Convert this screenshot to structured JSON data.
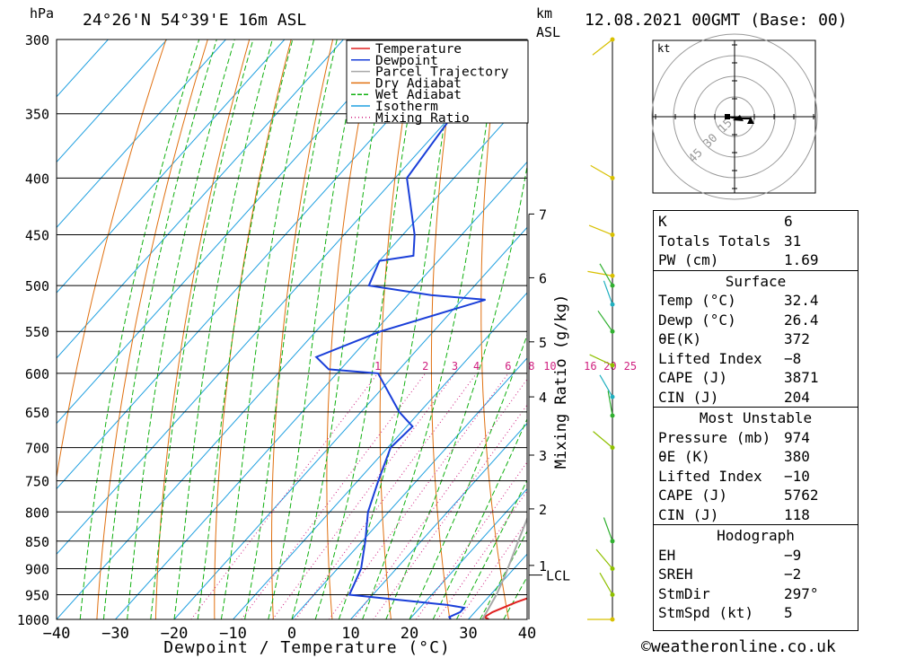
{
  "header": {
    "pressure_unit": "hPa",
    "location": "24°26'N  54°39'E  16m  ASL",
    "km_label": "km",
    "asl_label": "ASL",
    "datetime": "12.08.2021  00GMT  (Base: 00)"
  },
  "chart_data": {
    "type": "line",
    "subtype": "skew-t log-p sounding",
    "xlabel": "Dewpoint / Temperature (°C)",
    "ylabel": "hPa",
    "mixing_ratio_axis_label": "Mixing Ratio (g/kg)",
    "xlim": [
      -40,
      40
    ],
    "ylim": [
      1000,
      300
    ],
    "x_ticks": [
      "−40",
      "−30",
      "−20",
      "−10",
      "0",
      "10",
      "20",
      "30",
      "40"
    ],
    "pressure_levels": [
      300,
      350,
      400,
      450,
      500,
      550,
      600,
      650,
      700,
      750,
      800,
      850,
      900,
      950,
      1000
    ],
    "km_ticks": [
      {
        "label": "7",
        "p": 431
      },
      {
        "label": "6",
        "p": 492
      },
      {
        "label": "5",
        "p": 562
      },
      {
        "label": "4",
        "p": 630
      },
      {
        "label": "3",
        "p": 711
      },
      {
        "label": "2",
        "p": 795
      },
      {
        "label": "1",
        "p": 894
      }
    ],
    "lcl_label": "LCL",
    "lcl_pressure": 912,
    "mixing_ratio_labels": [
      "1",
      "2",
      "3",
      "4",
      "6",
      "8",
      "10",
      "16",
      "20",
      "25"
    ],
    "mixing_ratio_values": [
      1,
      2,
      3,
      4,
      6,
      8,
      10,
      16,
      20,
      25
    ],
    "legend": {
      "placement": "top-right",
      "items": [
        {
          "name": "Temperature",
          "color": "#e02020",
          "style": "solid"
        },
        {
          "name": "Dewpoint",
          "color": "#1a3fd9",
          "style": "solid"
        },
        {
          "name": "Parcel Trajectory",
          "color": "#a8a8a8",
          "style": "solid"
        },
        {
          "name": "Dry Adiabat",
          "color": "#e07010",
          "style": "solid"
        },
        {
          "name": "Wet Adiabat",
          "color": "#10b010",
          "style": "dashed"
        },
        {
          "name": "Isotherm",
          "color": "#20a0e0",
          "style": "solid"
        },
        {
          "name": "Mixing Ratio",
          "color": "#d02080",
          "style": "dotted"
        }
      ]
    },
    "series": [
      {
        "name": "Temperature",
        "color": "#e02020",
        "points": [
          [
            1000,
            33.5
          ],
          [
            995,
            32.4
          ],
          [
            985,
            33
          ],
          [
            965,
            35.5
          ],
          [
            950,
            38
          ],
          [
            900,
            34
          ],
          [
            850,
            30
          ],
          [
            800,
            26.5
          ],
          [
            750,
            23.5
          ],
          [
            700,
            20.5
          ],
          [
            650,
            18
          ],
          [
            620,
            16.5
          ],
          [
            600,
            15
          ],
          [
            585,
            16.5
          ],
          [
            550,
            12
          ],
          [
            520,
            8.5
          ],
          [
            505,
            8
          ],
          [
            500,
            7.5
          ],
          [
            470,
            5.5
          ],
          [
            420,
            0
          ],
          [
            400,
            -4
          ],
          [
            370,
            -9
          ]
        ]
      },
      {
        "name": "Dewpoint",
        "color": "#1a3fd9",
        "points": [
          [
            1000,
            27
          ],
          [
            995,
            26.4
          ],
          [
            985,
            27.5
          ],
          [
            976,
            27.5
          ],
          [
            970,
            24
          ],
          [
            950,
            6
          ],
          [
            900,
            4
          ],
          [
            850,
            0.5
          ],
          [
            800,
            -3.5
          ],
          [
            750,
            -6.5
          ],
          [
            700,
            -9.5
          ],
          [
            670,
            -9
          ],
          [
            650,
            -13.5
          ],
          [
            600,
            -23
          ],
          [
            595,
            -32
          ],
          [
            580,
            -36
          ],
          [
            550,
            -29
          ],
          [
            515,
            -16
          ],
          [
            510,
            -26
          ],
          [
            500,
            -38
          ],
          [
            475,
            -40
          ],
          [
            470,
            -35
          ],
          [
            450,
            -38
          ],
          [
            400,
            -48
          ],
          [
            300,
            -52
          ]
        ]
      },
      {
        "name": "Parcel Trajectory",
        "color": "#a8a8a8",
        "points": [
          [
            1000,
            32.4
          ],
          [
            950,
            31
          ],
          [
            912,
            29.5
          ],
          [
            850,
            26.5
          ],
          [
            800,
            24
          ],
          [
            750,
            21.5
          ],
          [
            700,
            18.5
          ],
          [
            650,
            15.5
          ],
          [
            600,
            12
          ],
          [
            550,
            8
          ],
          [
            500,
            3.5
          ],
          [
            450,
            -2
          ],
          [
            400,
            -8
          ],
          [
            370,
            -12
          ]
        ]
      }
    ]
  },
  "hodograph": {
    "unit": "kt",
    "ring_labels": [
      "15",
      "30",
      "45"
    ]
  },
  "indices": {
    "rows": [
      {
        "label": "K",
        "value": "6"
      },
      {
        "label": "Totals Totals",
        "value": "31"
      },
      {
        "label": "PW (cm)",
        "value": "1.69"
      }
    ]
  },
  "surface": {
    "title": "Surface",
    "rows": [
      {
        "label": "Temp (°C)",
        "value": "32.4"
      },
      {
        "label": "Dewp (°C)",
        "value": "26.4"
      },
      {
        "label": "θE(K)",
        "value": "372"
      },
      {
        "label": "Lifted Index",
        "value": "−8"
      },
      {
        "label": "CAPE (J)",
        "value": "3871"
      },
      {
        "label": "CIN (J)",
        "value": "204"
      }
    ]
  },
  "most_unstable": {
    "title": "Most Unstable",
    "rows": [
      {
        "label": "Pressure (mb)",
        "value": "974"
      },
      {
        "label": "θE (K)",
        "value": "380"
      },
      {
        "label": "Lifted Index",
        "value": "−10"
      },
      {
        "label": "CAPE (J)",
        "value": "5762"
      },
      {
        "label": "CIN (J)",
        "value": "118"
      }
    ]
  },
  "hodograph_stats": {
    "title": "Hodograph",
    "rows": [
      {
        "label": "EH",
        "value": "−9"
      },
      {
        "label": "SREH",
        "value": "−2"
      },
      {
        "label": "StmDir",
        "value": "297°"
      },
      {
        "label": "StmSpd (kt)",
        "value": "5"
      }
    ]
  },
  "footer": {
    "copyright": "©weatheronline.co.uk"
  }
}
